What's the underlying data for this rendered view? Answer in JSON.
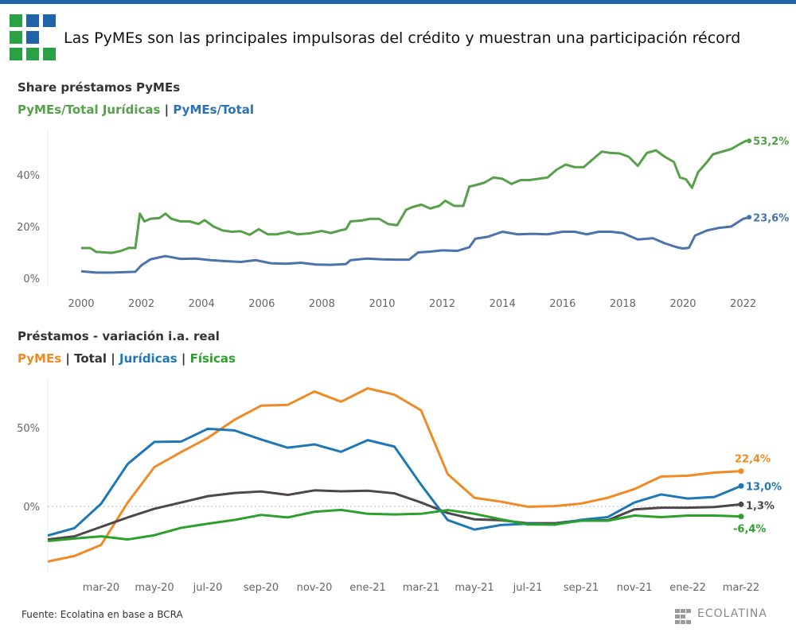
{
  "header": {
    "title": "Las PyMEs son las principales impulsoras del crédito y muestran una participación récord",
    "colors": {
      "bar": "#1f64a8",
      "green": "#3a9a45",
      "blue": "#1f64a8"
    }
  },
  "footer": {
    "source": "Fuente: Ecolatina en base a BCRA",
    "brand": "ECOLATINA"
  },
  "chart_data": [
    {
      "type": "line",
      "title": "Share préstamos PyMEs",
      "legend": [
        {
          "label": "PyMEs/Total Jurídicas",
          "color": "#56a04a"
        },
        {
          "label": "|",
          "color": "#333333"
        },
        {
          "label": "PyMEs/Total",
          "color": "#2a72b5"
        }
      ],
      "x_ticks": [
        "2000",
        "2002",
        "2004",
        "2006",
        "2008",
        "2010",
        "2012",
        "2014",
        "2016",
        "2018",
        "2020",
        "2022"
      ],
      "y_ticks": [
        "0%",
        "20%",
        "40%"
      ],
      "ylim": [
        0,
        55
      ],
      "xlim": [
        1999.6,
        2023.2
      ],
      "series": [
        {
          "name": "PyMEs/Total Jurídicas",
          "color": "#56a04a",
          "end_label": "53,2%",
          "x": [
            2000,
            2000.3,
            2000.5,
            2000.8,
            2001,
            2001.3,
            2001.6,
            2001.8,
            2001.95,
            2002.1,
            2002.3,
            2002.6,
            2002.8,
            2003,
            2003.3,
            2003.6,
            2003.9,
            2004.1,
            2004.4,
            2004.7,
            2005,
            2005.3,
            2005.6,
            2005.9,
            2006.2,
            2006.5,
            2006.9,
            2007.2,
            2007.6,
            2008,
            2008.3,
            2008.6,
            2008.8,
            2008.95,
            2009.3,
            2009.6,
            2009.9,
            2010.2,
            2010.5,
            2010.8,
            2011,
            2011.3,
            2011.6,
            2011.9,
            2012.1,
            2012.4,
            2012.7,
            2012.9,
            2013.1,
            2013.4,
            2013.7,
            2014,
            2014.3,
            2014.6,
            2014.9,
            2015.2,
            2015.5,
            2015.8,
            2016.1,
            2016.4,
            2016.7,
            2017,
            2017.3,
            2017.6,
            2017.9,
            2018.2,
            2018.5,
            2018.8,
            2019.1,
            2019.4,
            2019.7,
            2019.9,
            2020.1,
            2020.3,
            2020.5,
            2020.8,
            2021,
            2021.3,
            2021.6,
            2021.9,
            2022.1,
            2022.2
          ],
          "y": [
            11.7,
            11.7,
            10.2,
            10,
            9.8,
            10.5,
            11.8,
            11.7,
            25,
            22,
            23,
            23.3,
            25,
            23,
            22,
            22,
            21,
            22.5,
            20,
            18.5,
            18,
            18.2,
            16.8,
            19,
            17,
            17,
            18,
            17,
            17.4,
            18.3,
            17.5,
            18.5,
            19,
            22,
            22.3,
            23,
            23,
            21,
            20.5,
            26.5,
            27.5,
            28.5,
            27,
            28,
            30,
            28,
            28,
            35.5,
            36,
            37,
            39,
            38.5,
            36.5,
            38,
            38,
            38.5,
            39,
            42,
            44,
            43,
            43,
            46,
            49,
            48.5,
            48.3,
            47,
            43.5,
            48.5,
            49.5,
            47,
            45,
            39,
            38.3,
            35,
            41,
            45,
            48,
            49,
            50,
            52,
            53.2,
            53.2
          ]
        },
        {
          "name": "PyMEs/Total",
          "color": "#4a73ab",
          "end_label": "23,6%",
          "x": [
            2000,
            2000.5,
            2001,
            2001.5,
            2001.8,
            2002,
            2002.3,
            2002.8,
            2003.3,
            2003.8,
            2004.3,
            2004.8,
            2005.3,
            2005.8,
            2006.3,
            2006.8,
            2007.3,
            2007.8,
            2008.3,
            2008.8,
            2008.95,
            2009.5,
            2010,
            2010.5,
            2010.9,
            2011.2,
            2011.6,
            2012,
            2012.5,
            2012.9,
            2013.1,
            2013.5,
            2014,
            2014.5,
            2015,
            2015.5,
            2016,
            2016.4,
            2016.8,
            2017.2,
            2017.6,
            2018,
            2018.5,
            2019,
            2019.4,
            2019.8,
            2020,
            2020.2,
            2020.4,
            2020.8,
            2021.2,
            2021.6,
            2022,
            2022.2
          ],
          "y": [
            2.7,
            2.2,
            2.2,
            2.4,
            2.5,
            5,
            7.3,
            8.6,
            7.5,
            7.6,
            7,
            6.6,
            6.3,
            7,
            5.8,
            5.6,
            6,
            5.3,
            5.2,
            5.5,
            7,
            7.6,
            7.3,
            7.2,
            7.2,
            10,
            10.3,
            10.8,
            10.6,
            12,
            15.3,
            16,
            18,
            17,
            17.2,
            17,
            18,
            18,
            17,
            18,
            18,
            17.5,
            15,
            15.5,
            13.5,
            12,
            11.5,
            11.8,
            16.5,
            18.5,
            19.5,
            20,
            23,
            23.6
          ]
        }
      ]
    },
    {
      "type": "line",
      "title": "Préstamos - variación i.a. real",
      "legend": [
        {
          "label": "PyMEs",
          "color": "#f08a24"
        },
        {
          "label": "|",
          "color": "#333333"
        },
        {
          "label": "Total",
          "color": "#333333"
        },
        {
          "label": "|",
          "color": "#333333"
        },
        {
          "label": "Jurídicas",
          "color": "#1f77b4"
        },
        {
          "label": "|",
          "color": "#333333"
        },
        {
          "label": "Físicas",
          "color": "#2ca02c"
        }
      ],
      "categories": [
        "ene-20",
        "feb-20",
        "mar-20",
        "abr-20",
        "may-20",
        "jun-20",
        "jul-20",
        "ago-20",
        "sep-20",
        "oct-20",
        "nov-20",
        "dic-20",
        "ene-21",
        "feb-21",
        "mar-21",
        "abr-21",
        "may-21",
        "jun-21",
        "jul-21",
        "ago-21",
        "sep-21",
        "oct-21",
        "nov-21",
        "dic-21",
        "ene-22",
        "feb-22",
        "mar-22"
      ],
      "x_tick_labels": [
        "mar-20",
        "may-20",
        "jul-20",
        "sep-20",
        "nov-20",
        "ene-21",
        "mar-21",
        "may-21",
        "jul-21",
        "sep-21",
        "nov-21",
        "ene-22",
        "mar-22"
      ],
      "y_ticks": [
        "0%",
        "50%"
      ],
      "ylim": [
        -40,
        82
      ],
      "series": [
        {
          "name": "PyMEs",
          "color": "#f08a24",
          "end_label": "22,4%",
          "values": [
            -35,
            -31.5,
            -24.5,
            2.5,
            25,
            34.5,
            43.5,
            55,
            64,
            64.5,
            73,
            66.5,
            75,
            71,
            61,
            20.5,
            5.5,
            3,
            -0.2,
            0.2,
            1.8,
            5.5,
            11,
            19,
            19.5,
            21.5,
            22.4
          ]
        },
        {
          "name": "Total",
          "color": "#4d4749",
          "end_label": "1,3%",
          "values": [
            -21,
            -19,
            -13,
            -7,
            -1.5,
            2.5,
            6.5,
            8.5,
            9.5,
            7.3,
            10.2,
            9.6,
            10,
            8.3,
            2.5,
            -4.2,
            -8.2,
            -8.8,
            -10.7,
            -10.7,
            -8.8,
            -8.8,
            -1.9,
            -0.8,
            -0.8,
            -0.4,
            1.3
          ]
        },
        {
          "name": "Jurídicas",
          "color": "#1f77b4",
          "end_label": "13,0%",
          "values": [
            -18.5,
            -13.8,
            1.7,
            27,
            41,
            41.2,
            49.3,
            48.3,
            42.5,
            37.3,
            39.4,
            34.7,
            42.1,
            38,
            13.8,
            -8.7,
            -14.7,
            -11.8,
            -11,
            -11.6,
            -8.5,
            -6.8,
            2.5,
            7.6,
            5,
            6,
            13
          ]
        },
        {
          "name": "Físicas",
          "color": "#2ca02c",
          "end_label": "-6,4%",
          "values": [
            -22,
            -20.4,
            -19,
            -21,
            -18.3,
            -13.6,
            -11,
            -8.6,
            -5.4,
            -7,
            -3.4,
            -2.2,
            -4.7,
            -5.1,
            -4.7,
            -2.3,
            -4.7,
            -8.2,
            -11.5,
            -11.5,
            -9.1,
            -9.1,
            -5.8,
            -6.8,
            -5.8,
            -5.8,
            -6.4
          ]
        }
      ]
    }
  ]
}
